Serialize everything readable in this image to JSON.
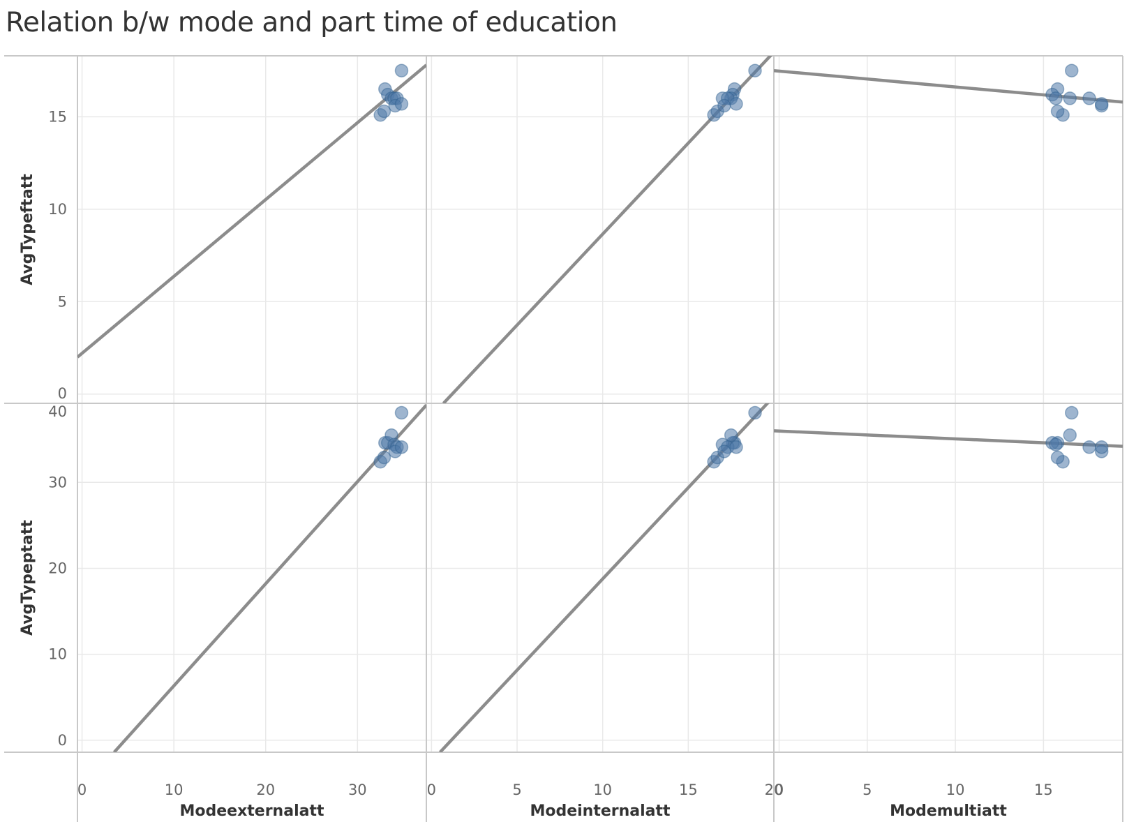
{
  "title": "Relation b/w mode and part time of education",
  "chart_data": {
    "type": "scatter",
    "title": "Relation b/w mode and part time of education",
    "trend_lines": true,
    "grid": true,
    "colors": {
      "point": "#4e79a7",
      "trend": "#8c8c8c",
      "grid": "#e9e9e9",
      "axis": "#c8c8c8"
    },
    "columns": [
      {
        "label": "Modeexternalatt",
        "xlim": [
          -0.5,
          37.5
        ],
        "ticks": [
          0,
          10,
          20,
          30
        ]
      },
      {
        "label": "Modeinternalatt",
        "xlim": [
          -0.3,
          20.0
        ],
        "ticks": [
          0,
          5,
          10,
          15,
          20
        ]
      },
      {
        "label": "Modemultiatt",
        "xlim": [
          -0.3,
          19.5
        ],
        "ticks": [
          0,
          5,
          10,
          15
        ]
      }
    ],
    "rows": [
      {
        "label": "AvgTypeftatt",
        "ylim": [
          -0.5,
          18.3
        ],
        "ticks": [
          0,
          5,
          10,
          15
        ]
      },
      {
        "label": "AvgTypeptatt",
        "ylim": [
          -1.4,
          39.2
        ],
        "ticks": [
          0,
          10,
          20,
          30,
          40
        ]
      }
    ],
    "points": [
      {
        "external": 32.5,
        "internal": 16.5,
        "multi": 16.1,
        "ftatt": 15.1,
        "ptatt": 32.4
      },
      {
        "external": 32.9,
        "internal": 16.7,
        "multi": 15.8,
        "ftatt": 15.3,
        "ptatt": 32.9
      },
      {
        "external": 33.0,
        "internal": 17.7,
        "multi": 15.8,
        "ftatt": 16.5,
        "ptatt": 34.6
      },
      {
        "external": 33.3,
        "internal": 17.6,
        "multi": 15.5,
        "ftatt": 16.2,
        "ptatt": 34.6
      },
      {
        "external": 33.7,
        "internal": 17.5,
        "multi": 16.5,
        "ftatt": 16.0,
        "ptatt": 35.5
      },
      {
        "external": 34.0,
        "internal": 17.0,
        "multi": 15.7,
        "ftatt": 16.0,
        "ptatt": 34.4
      },
      {
        "external": 34.3,
        "internal": 17.3,
        "multi": 17.6,
        "ftatt": 16.0,
        "ptatt": 34.1
      },
      {
        "external": 34.1,
        "internal": 17.1,
        "multi": 18.3,
        "ftatt": 15.6,
        "ptatt": 33.6
      },
      {
        "external": 34.8,
        "internal": 17.8,
        "multi": 18.3,
        "ftatt": 15.7,
        "ptatt": 34.1
      },
      {
        "external": 34.8,
        "internal": 18.9,
        "multi": 16.6,
        "ftatt": 17.5,
        "ptatt": 38.1
      }
    ],
    "trends": {
      "external_ftatt": [
        [
          -0.5,
          2.0
        ],
        [
          37.5,
          17.8
        ]
      ],
      "internal_ftatt": [
        [
          0.7,
          -0.5
        ],
        [
          20.0,
          18.5
        ]
      ],
      "multi_ftatt": [
        [
          -0.3,
          17.5
        ],
        [
          19.5,
          15.8
        ]
      ],
      "external_ptatt": [
        [
          3.5,
          -1.4
        ],
        [
          37.5,
          39.0
        ]
      ],
      "internal_ptatt": [
        [
          0.5,
          -1.4
        ],
        [
          20.0,
          40.0
        ]
      ],
      "multi_ptatt": [
        [
          -0.3,
          36.0
        ],
        [
          19.5,
          34.2
        ]
      ]
    }
  }
}
